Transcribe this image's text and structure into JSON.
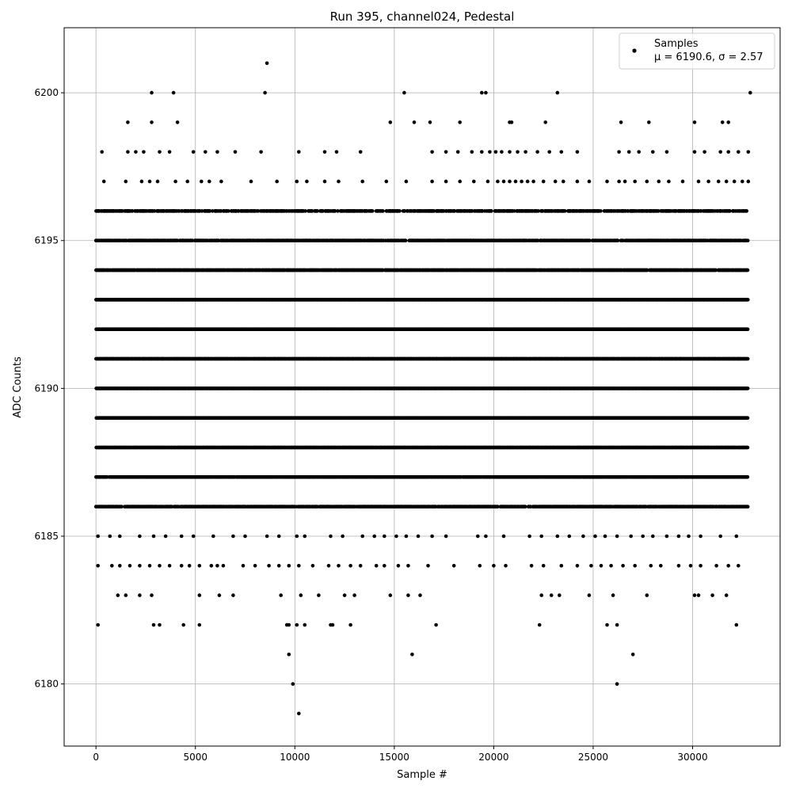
{
  "chart_data": {
    "type": "scatter",
    "title": "Run 395, channel024, Pedestal",
    "xlabel": "Sample #",
    "ylabel": "ADC Counts",
    "xlim": [
      -1600,
      34400
    ],
    "ylim": [
      6177.9,
      6202.2
    ],
    "xticks": [
      0,
      5000,
      10000,
      15000,
      20000,
      25000,
      30000
    ],
    "xtick_labels": [
      "0",
      "5000",
      "10000",
      "15000",
      "20000",
      "25000",
      "30000"
    ],
    "yticks": [
      6180,
      6185,
      6190,
      6195,
      6200
    ],
    "ytick_labels": [
      "6180",
      "6185",
      "6190",
      "6195",
      "6200"
    ],
    "grid": true,
    "legend": {
      "placement": "top-right",
      "entries": [
        "Samples",
        "μ = 6190.6, σ = 2.57"
      ]
    },
    "marker_color": "#000000",
    "n_samples": 32768,
    "stats": {
      "mean": 6190.6,
      "sigma": 2.57
    },
    "series": [
      {
        "name": "Samples",
        "level_distribution": [
          {
            "y": 6186,
            "density": 0.75
          },
          {
            "y": 6187,
            "density": 0.92
          },
          {
            "y": 6188,
            "density": 1.0
          },
          {
            "y": 6189,
            "density": 1.0
          },
          {
            "y": 6190,
            "density": 1.0
          },
          {
            "y": 6191,
            "density": 1.0
          },
          {
            "y": 6192,
            "density": 1.0
          },
          {
            "y": 6193,
            "density": 1.0
          },
          {
            "y": 6194,
            "density": 0.95
          },
          {
            "y": 6195,
            "density": 0.72
          },
          {
            "y": 6196,
            "density": 0.6
          }
        ],
        "level_points": [
          {
            "y": 6197,
            "x": [
              400,
              1500,
              2300,
              2700,
              3100,
              4000,
              4600,
              5300,
              5700,
              6300,
              7800,
              9100,
              10100,
              10600,
              11500,
              12200,
              13400,
              14600,
              15600,
              16900,
              17600,
              18300,
              19000,
              19700,
              20200,
              20500,
              20800,
              21100,
              21400,
              21700,
              22000,
              22500,
              23100,
              23500,
              24200,
              24800,
              25700,
              26300,
              26600,
              27100,
              27700,
              28300,
              28800,
              29500,
              30300,
              30800,
              31300,
              31700,
              32100,
              32500,
              32800
            ]
          },
          {
            "y": 6198,
            "x": [
              300,
              1600,
              2000,
              2400,
              3200,
              3700,
              4900,
              5500,
              6100,
              7000,
              8300,
              10200,
              11500,
              12100,
              13300,
              16900,
              17600,
              18200,
              18900,
              19400,
              19800,
              20100,
              20400,
              20800,
              21200,
              21600,
              22200,
              22800,
              23400,
              24200,
              26300,
              26800,
              27300,
              28000,
              28700,
              30100,
              30600,
              31400,
              31800,
              32300,
              32800
            ]
          },
          {
            "y": 6199,
            "x": [
              1600,
              2800,
              4100,
              14800,
              16000,
              16800,
              18300,
              20800,
              20900,
              22600,
              26400,
              27800,
              30100,
              31500,
              31800
            ]
          },
          {
            "y": 6200,
            "x": [
              2800,
              3900,
              8500,
              15500,
              19400,
              19600,
              23200,
              32900
            ]
          },
          {
            "y": 6201,
            "x": [
              8600
            ]
          },
          {
            "y": 6185,
            "x": [
              100,
              700,
              1200,
              2200,
              2900,
              3500,
              4300,
              4900,
              5900,
              6900,
              7500,
              8600,
              9200,
              10100,
              10500,
              11800,
              12400,
              13400,
              14000,
              14500,
              15100,
              15600,
              16200,
              16900,
              17600,
              19200,
              19600,
              20500,
              21800,
              22400,
              23200,
              23800,
              24500,
              25100,
              25600,
              26200,
              26900,
              27500,
              28000,
              28700,
              29300,
              29800,
              30400,
              31400,
              32200
            ]
          },
          {
            "y": 6184,
            "x": [
              100,
              800,
              1200,
              1700,
              2200,
              2700,
              3200,
              3700,
              4300,
              4700,
              5200,
              5800,
              6100,
              6400,
              7400,
              8000,
              8700,
              9200,
              9700,
              10200,
              10900,
              11700,
              12200,
              12800,
              13300,
              14100,
              14500,
              15200,
              15700,
              16700,
              18000,
              19300,
              20000,
              20600,
              21900,
              22500,
              23400,
              24200,
              24900,
              25400,
              25900,
              26500,
              27100,
              27900,
              28400,
              29300,
              29900,
              30400,
              31200,
              31800,
              32300
            ]
          },
          {
            "y": 6183,
            "x": [
              1100,
              1500,
              2200,
              2800,
              5200,
              6200,
              6900,
              9300,
              10300,
              11200,
              12500,
              13000,
              14800,
              15700,
              16300,
              22400,
              22900,
              23300,
              24800,
              26000,
              27700,
              30100,
              30300,
              31000,
              31700
            ]
          },
          {
            "y": 6182,
            "x": [
              100,
              2900,
              3200,
              4400,
              5200,
              9600,
              9700,
              10100,
              10500,
              11800,
              11900,
              12800,
              17100,
              22300,
              25700,
              26200,
              32200
            ]
          },
          {
            "y": 6181,
            "x": [
              9700,
              15900,
              27000
            ]
          },
          {
            "y": 6180,
            "x": [
              9900,
              26200
            ]
          },
          {
            "y": 6179,
            "x": [
              10200
            ]
          }
        ]
      }
    ]
  }
}
